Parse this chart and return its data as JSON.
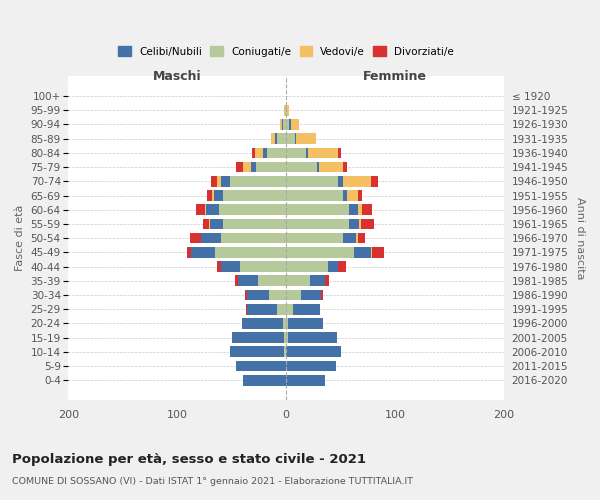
{
  "age_groups": [
    "100+",
    "95-99",
    "90-94",
    "85-89",
    "80-84",
    "75-79",
    "70-74",
    "65-69",
    "60-64",
    "55-59",
    "50-54",
    "45-49",
    "40-44",
    "35-39",
    "30-34",
    "25-29",
    "20-24",
    "15-19",
    "10-14",
    "5-9",
    "0-4"
  ],
  "birth_years": [
    "≤ 1920",
    "1921-1925",
    "1926-1930",
    "1931-1935",
    "1936-1940",
    "1941-1945",
    "1946-1950",
    "1951-1955",
    "1956-1960",
    "1961-1965",
    "1966-1970",
    "1971-1975",
    "1976-1980",
    "1981-1985",
    "1986-1990",
    "1991-1995",
    "1996-2000",
    "2001-2005",
    "2006-2010",
    "2011-2015",
    "2016-2020"
  ],
  "colors": {
    "celibe": "#4472a8",
    "coniugato": "#b5c99a",
    "vedovo": "#f5c063",
    "divorziato": "#d93030"
  },
  "maschi": {
    "celibe": [
      0,
      0,
      1,
      2,
      3,
      4,
      8,
      8,
      12,
      12,
      18,
      22,
      18,
      18,
      20,
      28,
      38,
      48,
      50,
      46,
      40
    ],
    "coniugato": [
      0,
      1,
      3,
      8,
      18,
      28,
      52,
      58,
      62,
      58,
      60,
      65,
      42,
      26,
      16,
      8,
      3,
      2,
      2,
      0,
      0
    ],
    "vedovo": [
      0,
      1,
      2,
      4,
      8,
      8,
      4,
      2,
      1,
      1,
      0,
      0,
      0,
      0,
      0,
      0,
      0,
      0,
      0,
      0,
      0
    ],
    "divorziato": [
      0,
      0,
      0,
      0,
      2,
      6,
      5,
      5,
      8,
      5,
      10,
      4,
      4,
      3,
      2,
      1,
      0,
      0,
      0,
      0,
      0
    ]
  },
  "femmine": {
    "nubile": [
      0,
      0,
      1,
      1,
      2,
      2,
      4,
      4,
      8,
      9,
      12,
      16,
      10,
      14,
      18,
      25,
      32,
      45,
      50,
      46,
      36
    ],
    "coniugata": [
      0,
      1,
      3,
      8,
      18,
      28,
      48,
      52,
      58,
      58,
      52,
      62,
      38,
      22,
      14,
      6,
      2,
      2,
      0,
      0,
      0
    ],
    "vedova": [
      0,
      2,
      8,
      18,
      28,
      22,
      26,
      10,
      4,
      2,
      2,
      1,
      0,
      0,
      0,
      0,
      0,
      0,
      0,
      0,
      0
    ],
    "divorziata": [
      0,
      0,
      0,
      0,
      2,
      4,
      6,
      4,
      9,
      12,
      6,
      11,
      7,
      3,
      2,
      0,
      0,
      0,
      0,
      0,
      0
    ]
  },
  "xlim": 200,
  "title": "Popolazione per età, sesso e stato civile - 2021",
  "subtitle": "COMUNE DI SOSSANO (VI) - Dati ISTAT 1° gennaio 2021 - Elaborazione TUTTITALIA.IT",
  "ylabel_left": "Fasce di età",
  "ylabel_right": "Anni di nascita",
  "xlabel_left": "Maschi",
  "xlabel_right": "Femmine",
  "bg_color": "#f0f0f0",
  "plot_bg_color": "#ffffff"
}
